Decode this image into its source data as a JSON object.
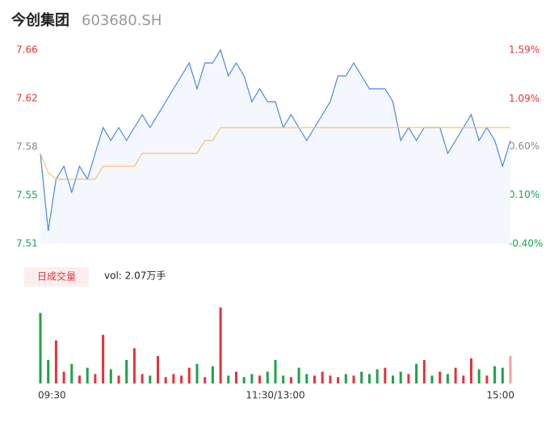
{
  "header": {
    "name": "今创集团",
    "code": "603680.SH"
  },
  "chart_data": [
    {
      "type": "line",
      "xlim": [
        0,
        240
      ],
      "x": [
        0,
        4,
        8,
        12,
        16,
        20,
        24,
        28,
        32,
        36,
        40,
        44,
        48,
        52,
        56,
        60,
        64,
        68,
        72,
        76,
        80,
        84,
        88,
        92,
        96,
        100,
        104,
        108,
        112,
        116,
        120,
        124,
        128,
        132,
        136,
        140,
        144,
        148,
        152,
        156,
        160,
        164,
        168,
        172,
        176,
        180,
        184,
        188,
        192,
        196,
        200,
        204,
        208,
        212,
        216,
        220,
        224,
        228,
        232,
        236,
        240
      ],
      "ylim": [
        7.51,
        7.66
      ],
      "yticks": [
        {
          "value": 7.66,
          "label": "7.66"
        },
        {
          "value": 7.6225,
          "label": "7.62"
        },
        {
          "value": 7.585,
          "label": "7.58"
        },
        {
          "value": 7.5475,
          "label": "7.55"
        },
        {
          "value": 7.51,
          "label": "7.51"
        }
      ],
      "ytick_colors": [
        "#e8313a",
        "#e8313a",
        "#8a8a8a",
        "#1aa34a",
        "#1aa34a"
      ],
      "y2lim": [
        -0.4,
        1.59
      ],
      "y2ticks": [
        {
          "value": 1.59,
          "label": "1.59%"
        },
        {
          "value": 1.09,
          "label": "1.09%"
        },
        {
          "value": 0.6,
          "label": "0.60%"
        },
        {
          "value": 0.1,
          "label": "0.10%"
        },
        {
          "value": -0.4,
          "label": "-0.40%"
        }
      ],
      "area_color": "#f4f7fd",
      "series": [
        {
          "color": "#4a86e8",
          "values": [
            7.58,
            7.52,
            7.56,
            7.57,
            7.55,
            7.57,
            7.56,
            7.58,
            7.6,
            7.59,
            7.6,
            7.59,
            7.6,
            7.61,
            7.6,
            7.61,
            7.62,
            7.63,
            7.64,
            7.65,
            7.63,
            7.65,
            7.65,
            7.66,
            7.64,
            7.65,
            7.64,
            7.62,
            7.63,
            7.62,
            7.62,
            7.6,
            7.61,
            7.6,
            7.59,
            7.6,
            7.61,
            7.62,
            7.64,
            7.64,
            7.65,
            7.64,
            7.63,
            7.63,
            7.63,
            7.62,
            7.59,
            7.6,
            7.59,
            7.6,
            7.6,
            7.6,
            7.58,
            7.59,
            7.6,
            7.61,
            7.59,
            7.6,
            7.59,
            7.57,
            7.59
          ]
        },
        {
          "color": "#f5c469",
          "values": [
            7.58,
            7.565,
            7.56,
            7.56,
            7.56,
            7.56,
            7.56,
            7.56,
            7.57,
            7.57,
            7.57,
            7.57,
            7.57,
            7.58,
            7.58,
            7.58,
            7.58,
            7.58,
            7.58,
            7.58,
            7.58,
            7.59,
            7.59,
            7.6,
            7.6,
            7.6,
            7.6,
            7.6,
            7.6,
            7.6,
            7.6,
            7.6,
            7.6,
            7.6,
            7.6,
            7.6,
            7.6,
            7.6,
            7.6,
            7.6,
            7.6,
            7.6,
            7.6,
            7.6,
            7.6,
            7.6,
            7.6,
            7.6,
            7.6,
            7.6,
            7.6,
            7.6,
            7.6,
            7.6,
            7.6,
            7.6,
            7.6,
            7.6,
            7.6,
            7.6,
            7.6
          ]
        }
      ]
    },
    {
      "type": "bar",
      "title": "日成交量",
      "subtitle": "vol: 2.07万手",
      "xlim": [
        0,
        240
      ],
      "x": [
        0,
        4,
        8,
        12,
        16,
        20,
        24,
        28,
        32,
        36,
        40,
        44,
        48,
        52,
        56,
        60,
        64,
        68,
        72,
        76,
        80,
        84,
        88,
        92,
        96,
        100,
        104,
        108,
        112,
        116,
        120,
        124,
        128,
        132,
        136,
        140,
        144,
        148,
        152,
        156,
        160,
        164,
        168,
        172,
        176,
        180,
        184,
        188,
        192,
        196,
        200,
        204,
        208,
        212,
        216,
        220,
        224,
        228,
        232,
        236,
        240
      ],
      "xticks": [
        {
          "value": 0,
          "label": "09:30"
        },
        {
          "value": 120,
          "label": "11:30/13:00"
        },
        {
          "value": 240,
          "label": "15:00"
        }
      ],
      "ylim": [
        0,
        100
      ],
      "values": [
        90,
        30,
        55,
        15,
        25,
        10,
        20,
        12,
        62,
        18,
        10,
        30,
        45,
        12,
        10,
        35,
        8,
        12,
        10,
        20,
        25,
        8,
        22,
        97,
        10,
        15,
        8,
        12,
        10,
        15,
        30,
        10,
        8,
        20,
        12,
        10,
        15,
        10,
        8,
        12,
        10,
        15,
        12,
        18,
        20,
        10,
        15,
        12,
        25,
        30,
        10,
        15,
        12,
        20,
        10,
        32,
        18,
        10,
        22,
        20,
        35
      ],
      "colors": [
        "#1aa34a",
        "#1aa34a",
        "#e8313a",
        "#e8313a",
        "#1aa34a",
        "#e8313a",
        "#1aa34a",
        "#e8313a",
        "#e8313a",
        "#1aa34a",
        "#e8313a",
        "#1aa34a",
        "#e8313a",
        "#e8313a",
        "#1aa34a",
        "#e8313a",
        "#e8313a",
        "#e8313a",
        "#e8313a",
        "#e8313a",
        "#1aa34a",
        "#e8313a",
        "#1aa34a",
        "#e8313a",
        "#1aa34a",
        "#e8313a",
        "#1aa34a",
        "#1aa34a",
        "#e8313a",
        "#1aa34a",
        "#1aa34a",
        "#1aa34a",
        "#e8313a",
        "#1aa34a",
        "#1aa34a",
        "#e8313a",
        "#e8313a",
        "#e8313a",
        "#e8313a",
        "#1aa34a",
        "#e8313a",
        "#1aa34a",
        "#1aa34a",
        "#1aa34a",
        "#e8313a",
        "#1aa34a",
        "#1aa34a",
        "#e8313a",
        "#1aa34a",
        "#e8313a",
        "#1aa34a",
        "#e8313a",
        "#1aa34a",
        "#e8313a",
        "#e8313a",
        "#e8313a",
        "#1aa34a",
        "#e8313a",
        "#1aa34a",
        "#1aa34a",
        "#f4a0a0"
      ]
    }
  ]
}
